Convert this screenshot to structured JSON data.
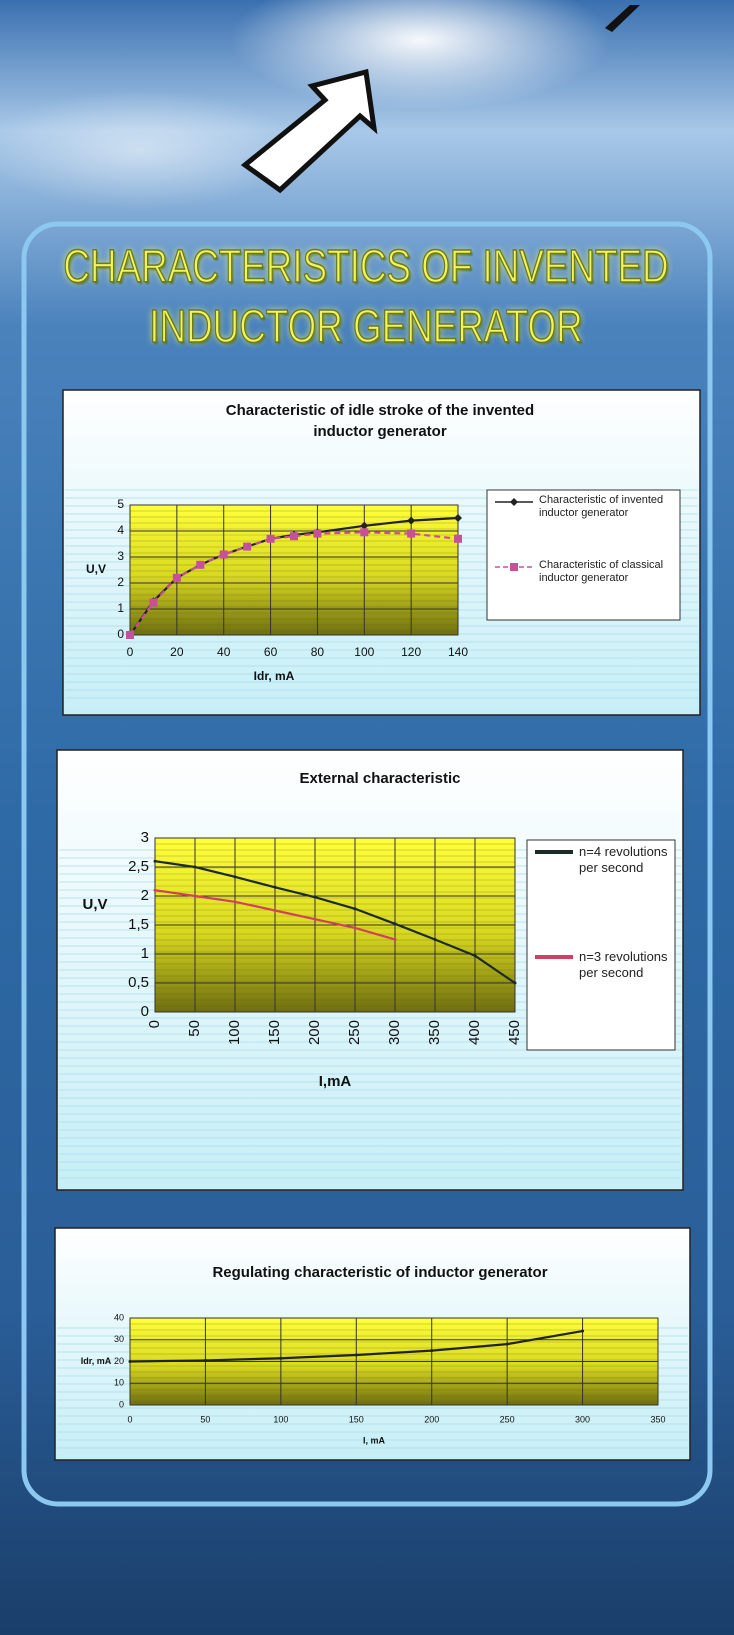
{
  "poster_title": "CHARACTERISTICS OF INVENTED INDUCTOR GENERATOR",
  "chart_data": [
    {
      "type": "line",
      "title": "Characteristic of idle stroke of the invented inductor generator",
      "x_label": "Idr, mA",
      "y_label": "U,V",
      "x": [
        0,
        10,
        20,
        30,
        40,
        50,
        60,
        70,
        80,
        100,
        120,
        140
      ],
      "series": [
        {
          "name": "Characteristic of invented inductor generator",
          "color": "#222222",
          "marker": "diamond",
          "dashed": false,
          "values": [
            0,
            1.3,
            2.2,
            2.7,
            3.1,
            3.4,
            3.7,
            3.85,
            3.95,
            4.2,
            4.4,
            4.5
          ]
        },
        {
          "name": "Characteristic of classical inductor generator",
          "color": "#c8509a",
          "marker": "square",
          "dashed": true,
          "values": [
            0,
            1.25,
            2.2,
            2.7,
            3.1,
            3.4,
            3.7,
            3.8,
            3.9,
            3.95,
            3.9,
            3.7
          ]
        }
      ],
      "xlim": [
        0,
        140
      ],
      "xticks": [
        0,
        20,
        40,
        60,
        80,
        100,
        120,
        140
      ],
      "ylim": [
        0,
        5
      ],
      "yticks": [
        0,
        1,
        2,
        3,
        4,
        5
      ],
      "grid": true
    },
    {
      "type": "line",
      "title": "External characteristic",
      "x_label": "I,mA",
      "y_label": "U,V",
      "x": [
        0,
        50,
        100,
        150,
        200,
        250,
        300,
        350,
        400,
        450
      ],
      "series": [
        {
          "name": "n=4 revolutions per second",
          "color": "#1c2a2a",
          "dashed": false,
          "values": [
            2.6,
            2.5,
            2.33,
            2.15,
            1.98,
            1.78,
            1.52,
            1.25,
            0.97,
            0.5
          ]
        },
        {
          "name": "n=3 revolutions per second",
          "color": "#d04060",
          "dashed": false,
          "values": [
            2.1,
            2.0,
            1.9,
            1.75,
            1.6,
            1.45,
            1.25,
            null,
            null,
            null
          ]
        }
      ],
      "xlim": [
        0,
        450
      ],
      "xticks": [
        0,
        50,
        100,
        150,
        200,
        250,
        300,
        350,
        400,
        450
      ],
      "ylim": [
        0,
        3
      ],
      "yticks": [
        0,
        {
          "value": 0.5,
          "label": "0,5"
        },
        1,
        {
          "value": 1.5,
          "label": "1,5"
        },
        2,
        {
          "value": 2.5,
          "label": "2,5"
        },
        3
      ],
      "grid": true
    },
    {
      "type": "line",
      "title": "Regulating characteristic of inductor generator",
      "x_label": "I, mA",
      "y_label": "Idr, mA",
      "x": [
        0,
        50,
        100,
        150,
        200,
        250,
        300
      ],
      "series": [
        {
          "color": "#222222",
          "dashed": false,
          "values": [
            20,
            20.5,
            21.5,
            23,
            25,
            28,
            34
          ]
        }
      ],
      "xlim": [
        0,
        350
      ],
      "xticks": [
        0,
        50,
        100,
        150,
        200,
        250,
        300,
        350
      ],
      "ylim": [
        0,
        40
      ],
      "yticks": [
        0,
        10,
        20,
        30,
        40
      ],
      "grid": true
    }
  ]
}
